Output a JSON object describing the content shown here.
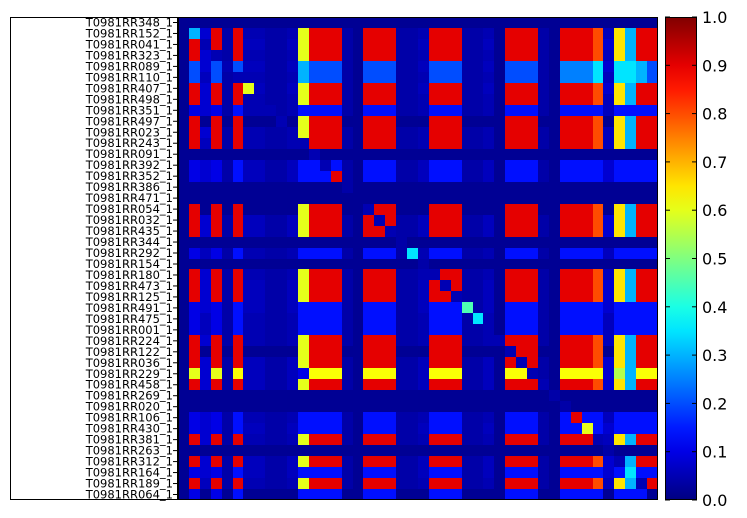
{
  "chart_data": {
    "type": "heatmap",
    "title": "",
    "xlabel": "",
    "ylabel": "",
    "colormap": "jet",
    "vmin": 0.0,
    "vmax": 1.0,
    "n_columns": 44,
    "grid": false,
    "y_labels": [
      "T0981RR348_1",
      "T0981RR152_1",
      "T0981RR041_1",
      "T0981RR323_1",
      "T0981RR089_1",
      "T0981RR110_1",
      "T0981RR407_1",
      "T0981RR498_1",
      "T0981RR351_1",
      "T0981RR497_1",
      "T0981RR023_1",
      "T0981RR243_1",
      "T0981RR091_1",
      "T0981RR392_1",
      "T0981RR352_1",
      "T0981RR386_1",
      "T0981RR471_1",
      "T0981RR054_1",
      "T0981RR032_1",
      "T0981RR435_1",
      "T0981RR344_1",
      "T0981RR292_1",
      "T0981RR154_1",
      "T0981RR180_1",
      "T0981RR473_1",
      "T0981RR125_1",
      "T0981RR491_1",
      "T0981RR475_1",
      "T0981RR001_1",
      "T0981RR224_1",
      "T0981RR122_1",
      "T0981RR036_1",
      "T0981RR229_1",
      "T0981RR458_1",
      "T0981RR269_1",
      "T0981RR020_1",
      "T0981RR106_1",
      "T0981RR430_1",
      "T0981RR381_1",
      "T0981RR263_1",
      "T0981RR312_1",
      "T0981RR164_1",
      "T0981RR189_1",
      "T0981RR064_1"
    ],
    "colorbar_ticks": [
      "0.0",
      "0.1",
      "0.2",
      "0.3",
      "0.4",
      "0.5",
      "0.6",
      "0.7",
      "0.8",
      "0.9",
      "1.0"
    ],
    "colorbar_tick_values": [
      0.0,
      0.1,
      0.2,
      0.3,
      0.4,
      0.5,
      0.6,
      0.7,
      0.8,
      0.9,
      1.0
    ],
    "column_profiles": {
      "A": [
        0.02,
        0.1,
        0.88,
        0.06,
        0.88,
        0.06,
        0.88,
        0.1,
        0.1,
        0.02,
        0.1,
        0.06,
        0.62,
        0.88,
        0.88,
        0.88,
        0.06,
        0.02,
        0.88,
        0.88,
        0.88,
        0.06,
        0.02,
        0.1,
        0.88,
        0.88,
        0.88,
        0.06,
        0.06,
        0.1,
        0.02,
        0.88,
        0.88,
        0.88,
        0.06,
        0.72,
        0.1,
        0.35,
        0.14,
        0.88,
        0.88,
        0.88,
        0.06,
        0.02
      ],
      "B": [
        0.02,
        0.35,
        0.18,
        0.1,
        0.18,
        0.1,
        0.38,
        0.38,
        0.38,
        0.02,
        0.1,
        0.1,
        0.2,
        0.38,
        0.38,
        0.38,
        0.06,
        0.02,
        0.38,
        0.3,
        0.38,
        0.1,
        0.02,
        0.1,
        0.34,
        0.34,
        0.34,
        0.2,
        0.2,
        0.2,
        0.02,
        0.34,
        0.42,
        0.42,
        0.38,
        0.4,
        0.3,
        0.45,
        0.32,
        0.3,
        0.38,
        0.12,
        0.48,
        0.02
      ],
      "C": [
        0.02,
        0.1,
        0.88,
        0.06,
        0.88,
        0.06,
        0.88,
        0.1,
        0.1,
        0.02,
        0.1,
        0.06,
        0.62,
        0.8,
        0.8,
        0.8,
        0.06,
        0.02,
        0.88,
        0.88,
        0.88,
        0.06,
        0.02,
        0.1,
        0.88,
        0.88,
        0.88,
        0.06,
        0.06,
        0.1,
        0.02,
        0.88,
        0.88,
        0.88,
        0.06,
        0.72,
        0.1,
        0.3,
        0.14,
        0.88,
        0.88,
        0.88,
        0.06,
        0.02
      ],
      "D": [
        0.02,
        0.08,
        0.08,
        0.08,
        0.08,
        0.06,
        0.08,
        0.08,
        0.08,
        0.02,
        0.08,
        0.06,
        0.08,
        0.08,
        0.08,
        0.08,
        0.04,
        0.02,
        0.08,
        0.08,
        0.08,
        0.06,
        0.02,
        0.08,
        0.08,
        0.08,
        0.08,
        0.06,
        0.06,
        0.08,
        0.02,
        0.08,
        0.08,
        0.08,
        0.06,
        0.08,
        0.08,
        0.08,
        0.08,
        0.08,
        0.08,
        0.08,
        0.06,
        0.02
      ],
      "E": [
        0.02,
        0.05,
        0.06,
        0.05,
        0.06,
        0.05,
        0.06,
        0.05,
        0.05,
        0.02,
        0.05,
        0.05,
        0.06,
        0.06,
        0.06,
        0.06,
        0.04,
        0.02,
        0.06,
        0.06,
        0.06,
        0.05,
        0.02,
        0.05,
        0.06,
        0.06,
        0.06,
        0.05,
        0.05,
        0.05,
        0.02,
        0.06,
        0.06,
        0.06,
        0.05,
        0.06,
        0.05,
        0.06,
        0.05,
        0.06,
        0.06,
        0.06,
        0.05,
        0.02
      ],
      "F": [
        0.02,
        0.06,
        0.08,
        0.06,
        0.08,
        0.06,
        0.08,
        0.06,
        0.06,
        0.02,
        0.06,
        0.06,
        0.08,
        0.08,
        0.08,
        0.08,
        0.05,
        0.02,
        0.08,
        0.08,
        0.08,
        0.06,
        0.02,
        0.06,
        0.08,
        0.08,
        0.08,
        0.06,
        0.06,
        0.06,
        0.02,
        0.08,
        0.08,
        0.08,
        0.06,
        0.08,
        0.06,
        0.08,
        0.06,
        0.08,
        0.08,
        0.08,
        0.06,
        0.02
      ],
      "G": [
        0.02,
        0.04,
        0.04,
        0.04,
        0.04,
        0.04,
        0.04,
        0.04,
        0.04,
        0.02,
        0.04,
        0.04,
        0.04,
        0.04,
        0.04,
        0.04,
        0.03,
        0.02,
        0.04,
        0.04,
        0.04,
        0.04,
        0.02,
        0.04,
        0.04,
        0.04,
        0.04,
        0.04,
        0.04,
        0.04,
        0.02,
        0.04,
        0.04,
        0.04,
        0.04,
        0.04,
        0.04,
        0.04,
        0.04,
        0.04,
        0.04,
        0.04,
        0.04,
        0.02
      ],
      "H": [
        0.02,
        0.04,
        0.04,
        0.04,
        0.04,
        0.04,
        0.04,
        0.04,
        0.04,
        0.02,
        0.04,
        0.04,
        0.04,
        0.04,
        0.04,
        0.04,
        0.03,
        0.02,
        0.04,
        0.04,
        0.04,
        0.04,
        0.02,
        0.04,
        0.04,
        0.04,
        0.04,
        0.04,
        0.04,
        0.04,
        0.02,
        0.04,
        0.04,
        0.04,
        0.04,
        0.04,
        0.04,
        0.04,
        0.04,
        0.04,
        0.04,
        0.04,
        0.04,
        0.02
      ]
    },
    "row_profiles": {
      "R": [
        0.02,
        0.9,
        0.1,
        0.9,
        0.1,
        0.9,
        0.14,
        0.14,
        0.06,
        0.06,
        0.14,
        0.6,
        0.9,
        0.9,
        0.9,
        0.06,
        0.02,
        0.9,
        0.9,
        0.9,
        0.06,
        0.06,
        0.1,
        0.9,
        0.9,
        0.9,
        0.06,
        0.06,
        0.14,
        0.02,
        0.9,
        0.9,
        0.9,
        0.06,
        0.02,
        0.9,
        0.9,
        0.9,
        0.8,
        0.1,
        0.65,
        0.3,
        0.9,
        0.9
      ],
      "P": [
        0.02,
        0.2,
        0.1,
        0.2,
        0.08,
        0.2,
        0.2,
        0.2,
        0.06,
        0.06,
        0.2,
        0.3,
        0.2,
        0.2,
        0.2,
        0.06,
        0.02,
        0.2,
        0.2,
        0.2,
        0.06,
        0.06,
        0.1,
        0.2,
        0.2,
        0.2,
        0.06,
        0.06,
        0.14,
        0.02,
        0.2,
        0.2,
        0.2,
        0.06,
        0.02,
        0.25,
        0.25,
        0.25,
        0.35,
        0.4,
        0.35,
        0.35,
        0.3,
        0.2
      ],
      "Y": [
        0.02,
        0.6,
        0.1,
        0.6,
        0.1,
        0.62,
        0.18,
        0.18,
        0.06,
        0.06,
        0.18,
        0.1,
        0.62,
        0.62,
        0.62,
        0.06,
        0.02,
        0.62,
        0.62,
        0.62,
        0.06,
        0.06,
        0.1,
        0.62,
        0.62,
        0.62,
        0.06,
        0.06,
        0.14,
        0.02,
        0.62,
        0.62,
        0.62,
        0.06,
        0.02,
        0.62,
        0.62,
        0.62,
        0.62,
        0.1,
        0.55,
        0.3,
        0.62,
        0.62
      ],
      "S": [
        0.02,
        0.1,
        0.1,
        0.1,
        0.1,
        0.14,
        0.1,
        0.1,
        0.06,
        0.06,
        0.1,
        0.14,
        0.14,
        0.14,
        0.14,
        0.06,
        0.02,
        0.14,
        0.14,
        0.14,
        0.06,
        0.06,
        0.1,
        0.14,
        0.14,
        0.14,
        0.06,
        0.06,
        0.14,
        0.02,
        0.14,
        0.14,
        0.14,
        0.06,
        0.02,
        0.14,
        0.14,
        0.14,
        0.14,
        0.1,
        0.14,
        0.14,
        0.14,
        0.14
      ],
      "Z": [
        0.02,
        0.04,
        0.04,
        0.04,
        0.04,
        0.04,
        0.04,
        0.04,
        0.04,
        0.04,
        0.04,
        0.04,
        0.04,
        0.04,
        0.04,
        0.04,
        0.02,
        0.04,
        0.04,
        0.04,
        0.04,
        0.04,
        0.04,
        0.04,
        0.04,
        0.04,
        0.04,
        0.04,
        0.04,
        0.02,
        0.04,
        0.04,
        0.04,
        0.04,
        0.02,
        0.04,
        0.04,
        0.04,
        0.04,
        0.04,
        0.04,
        0.04,
        0.04,
        0.04
      ]
    },
    "row_types": [
      "Z",
      "R",
      "R",
      "R",
      "P",
      "P",
      "R",
      "R",
      "S",
      "R",
      "R",
      "R",
      "Z",
      "S",
      "S",
      "Z",
      "Z",
      "R",
      "R",
      "R",
      "Z",
      "S",
      "Z",
      "R",
      "R",
      "R",
      "S",
      "S",
      "S",
      "R",
      "R",
      "R",
      "Y",
      "R",
      "Z",
      "Z",
      "S",
      "S",
      "R",
      "Z",
      "R",
      "S",
      "R",
      "S"
    ],
    "diagonal_values": [
      0.02,
      0.3,
      0.05,
      0.05,
      0.05,
      0.05,
      0.6,
      0.05,
      0.05,
      0.05,
      0.05,
      0.05,
      0.05,
      0.05,
      0.9,
      0.04,
      0.02,
      0.05,
      0.05,
      0.05,
      0.04,
      0.35,
      0.04,
      0.05,
      0.05,
      0.05,
      0.45,
      0.35,
      0.05,
      0.05,
      0.05,
      0.05,
      0.05,
      0.05,
      0.04,
      0.04,
      0.9,
      0.6,
      0.05,
      0.04,
      0.05,
      0.35,
      0.05,
      0.02
    ]
  }
}
